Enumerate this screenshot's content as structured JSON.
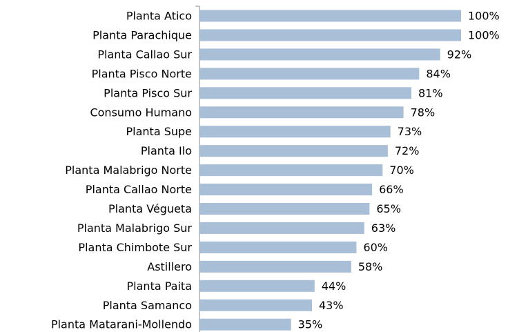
{
  "chart_data": {
    "type": "bar",
    "orientation": "horizontal",
    "categories": [
      "Planta Atico",
      "Planta Parachique",
      "Planta Callao Sur",
      "Planta Pisco Norte",
      "Planta Pisco Sur",
      "Consumo Humano",
      "Planta Supe",
      "Planta Ilo",
      "Planta Malabrigo Norte",
      "Planta Callao Norte",
      "Planta Végueta",
      "Planta Malabrigo Sur",
      "Planta Chimbote Sur",
      "Astillero",
      "Planta Paita",
      "Planta Samanco",
      "Planta Matarani-Mollendo"
    ],
    "values": [
      100,
      100,
      92,
      84,
      81,
      78,
      73,
      72,
      70,
      66,
      65,
      63,
      60,
      58,
      44,
      43,
      35
    ],
    "value_labels": [
      "100%",
      "100%",
      "92%",
      "84%",
      "81%",
      "78%",
      "73%",
      "72%",
      "70%",
      "66%",
      "65%",
      "63%",
      "60%",
      "58%",
      "44%",
      "43%",
      "35%"
    ],
    "color": "#a9bfd7",
    "xlim": [
      0,
      100
    ]
  }
}
